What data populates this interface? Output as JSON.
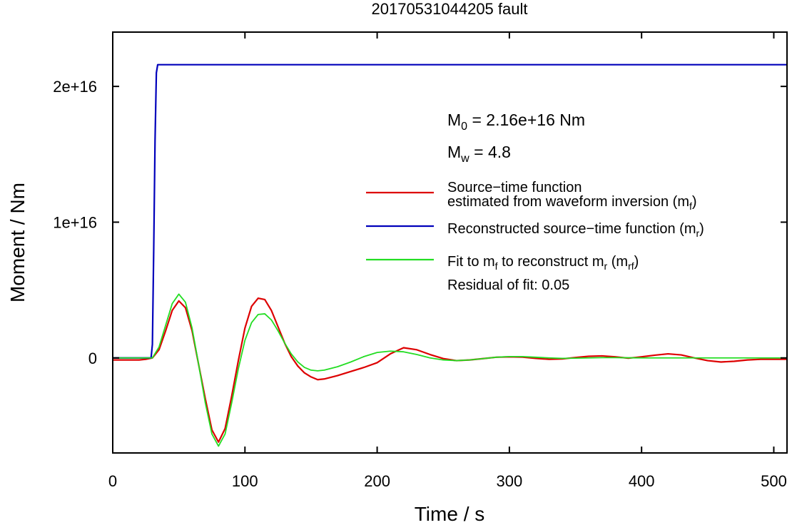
{
  "chart_data": {
    "type": "line",
    "title": "20170531044205 fault",
    "xlabel": "Time / s",
    "ylabel": "Moment / Nm",
    "xlim": [
      0,
      510
    ],
    "ylim": [
      -7000000000000000,
      24000000000000000
    ],
    "xticks": [
      0,
      100,
      200,
      300,
      400,
      500
    ],
    "xtick_labels": [
      "0",
      "100",
      "200",
      "300",
      "400",
      "500"
    ],
    "yticks": [
      0,
      10000000000000000,
      20000000000000000
    ],
    "ytick_labels": [
      "0",
      "1e+16",
      "2e+16"
    ],
    "grid": false,
    "annotations": {
      "m0": {
        "main": "M",
        "sub": "0",
        "rest": " = 2.16e+16 Nm"
      },
      "mw": {
        "main": "M",
        "sub": "w",
        "rest": " = 4.8"
      },
      "residual": "Residual of fit: 0.05"
    },
    "legend": {
      "placement": "right",
      "entries": [
        {
          "color": "#dd0000",
          "line1": "Source−time function",
          "line2_pre": "estimated from waveform inversion (m",
          "line2_sub": "f",
          "line2_post": ")"
        },
        {
          "color": "#0000bb",
          "pre": "Reconstructed source−time function (m",
          "sub": "r",
          "post": ")"
        },
        {
          "color": "#22dd22",
          "pre": "Fit to m",
          "sub1": "f",
          "mid": " to reconstruct m",
          "sub2": "r",
          "mid2": " (m",
          "sub3": "rf",
          "post": ")"
        }
      ]
    },
    "series": [
      {
        "color": "#dd0000",
        "x": [
          0,
          10,
          20,
          25,
          30,
          35,
          40,
          45,
          50,
          55,
          60,
          65,
          70,
          75,
          80,
          85,
          90,
          95,
          100,
          105,
          110,
          115,
          120,
          125,
          130,
          135,
          140,
          145,
          150,
          155,
          160,
          170,
          180,
          190,
          200,
          210,
          220,
          230,
          240,
          250,
          260,
          270,
          280,
          290,
          300,
          310,
          320,
          330,
          340,
          350,
          360,
          370,
          380,
          390,
          400,
          410,
          420,
          430,
          440,
          450,
          460,
          470,
          480,
          490,
          500,
          510
        ],
        "y": [
          -150000000000000,
          -150000000000000,
          -150000000000000,
          -100000000000000,
          0,
          600000000000000,
          2000000000000000,
          3500000000000000,
          4200000000000000,
          3700000000000000,
          2000000000000000,
          -500000000000000,
          -3000000000000000,
          -5300000000000000,
          -6200000000000000,
          -5200000000000000,
          -2800000000000000,
          -200000000000000,
          2200000000000000,
          3800000000000000,
          4400000000000000,
          4300000000000000,
          3500000000000000,
          2300000000000000,
          1100000000000000,
          100000000000000,
          -600000000000000,
          -1100000000000000,
          -1400000000000000,
          -1600000000000000,
          -1550000000000000,
          -1300000000000000,
          -1000000000000000,
          -700000000000000,
          -350000000000000,
          300000000000000,
          750000000000000,
          600000000000000,
          250000000000000,
          -50000000000000,
          -200000000000000,
          -150000000000000,
          -50000000000000,
          50000000000000,
          80000000000000,
          60000000000000,
          -30000000000000,
          -100000000000000,
          -70000000000000,
          30000000000000,
          120000000000000,
          150000000000000,
          80000000000000,
          -20000000000000,
          80000000000000,
          200000000000000,
          300000000000000,
          220000000000000,
          0,
          -200000000000000,
          -300000000000000,
          -250000000000000,
          -150000000000000,
          -100000000000000,
          -100000000000000,
          -100000000000000
        ]
      },
      {
        "color": "#0000bb",
        "x": [
          0,
          10,
          20,
          29,
          30,
          31,
          32,
          33,
          34,
          35,
          100,
          200,
          300,
          400,
          510
        ],
        "y": [
          0,
          0,
          0,
          0,
          1000000000000000,
          8000000000000000,
          16000000000000000,
          21000000000000000,
          21600000000000000,
          21600000000000000,
          21600000000000000,
          21600000000000000,
          21600000000000000,
          21600000000000000,
          21600000000000000
        ]
      },
      {
        "color": "#22dd22",
        "x": [
          0,
          10,
          20,
          25,
          30,
          35,
          40,
          45,
          50,
          55,
          60,
          65,
          70,
          75,
          80,
          85,
          90,
          95,
          100,
          105,
          110,
          115,
          120,
          125,
          130,
          135,
          140,
          145,
          150,
          155,
          160,
          170,
          180,
          190,
          200,
          210,
          220,
          230,
          240,
          250,
          260,
          270,
          280,
          290,
          300,
          310,
          320,
          330,
          340,
          350,
          360,
          370,
          380,
          390,
          400,
          410,
          420,
          430,
          440,
          450,
          460,
          470,
          480,
          490,
          500,
          510
        ],
        "y": [
          0,
          0,
          0,
          0,
          0,
          800000000000000,
          2400000000000000,
          4000000000000000,
          4700000000000000,
          4100000000000000,
          2200000000000000,
          -500000000000000,
          -3300000000000000,
          -5600000000000000,
          -6500000000000000,
          -5600000000000000,
          -3300000000000000,
          -800000000000000,
          1300000000000000,
          2600000000000000,
          3200000000000000,
          3250000000000000,
          2800000000000000,
          2000000000000000,
          1100000000000000,
          300000000000000,
          -300000000000000,
          -700000000000000,
          -900000000000000,
          -950000000000000,
          -900000000000000,
          -650000000000000,
          -300000000000000,
          100000000000000,
          400000000000000,
          500000000000000,
          450000000000000,
          250000000000000,
          0,
          -150000000000000,
          -200000000000000,
          -150000000000000,
          -50000000000000,
          50000000000000,
          100000000000000,
          100000000000000,
          50000000000000,
          0,
          -30000000000000,
          -20000000000000,
          0,
          20000000000000,
          20000000000000,
          10000000000000,
          0,
          0,
          0,
          0,
          0,
          0,
          0,
          0,
          0,
          0,
          0,
          0
        ]
      }
    ]
  }
}
